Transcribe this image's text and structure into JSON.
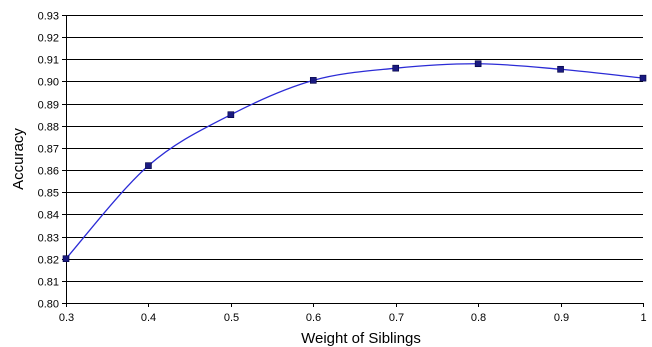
{
  "chart_data": {
    "type": "line",
    "title": "",
    "xlabel": "Weight of Siblings",
    "ylabel": "Accuracy",
    "xlim": [
      0.3,
      1.0
    ],
    "ylim": [
      0.8,
      0.93
    ],
    "x_ticks": [
      "0.3",
      "0.4",
      "0.5",
      "0.6",
      "0.7",
      "0.8",
      "0.9",
      "1"
    ],
    "y_ticks": [
      "0.80",
      "0.81",
      "0.82",
      "0.83",
      "0.84",
      "0.85",
      "0.86",
      "0.87",
      "0.88",
      "0.89",
      "0.90",
      "0.91",
      "0.92",
      "0.93"
    ],
    "grid": "horizontal",
    "legend": "none",
    "series": [
      {
        "color": "#2b2bd6",
        "marker_color": "#1a1a80",
        "x": [
          0.3,
          0.4,
          0.5,
          0.6,
          0.7,
          0.8,
          0.9,
          1.0
        ],
        "values": [
          0.82,
          0.862,
          0.885,
          0.9005,
          0.906,
          0.908,
          0.9055,
          0.9015
        ]
      }
    ]
  }
}
